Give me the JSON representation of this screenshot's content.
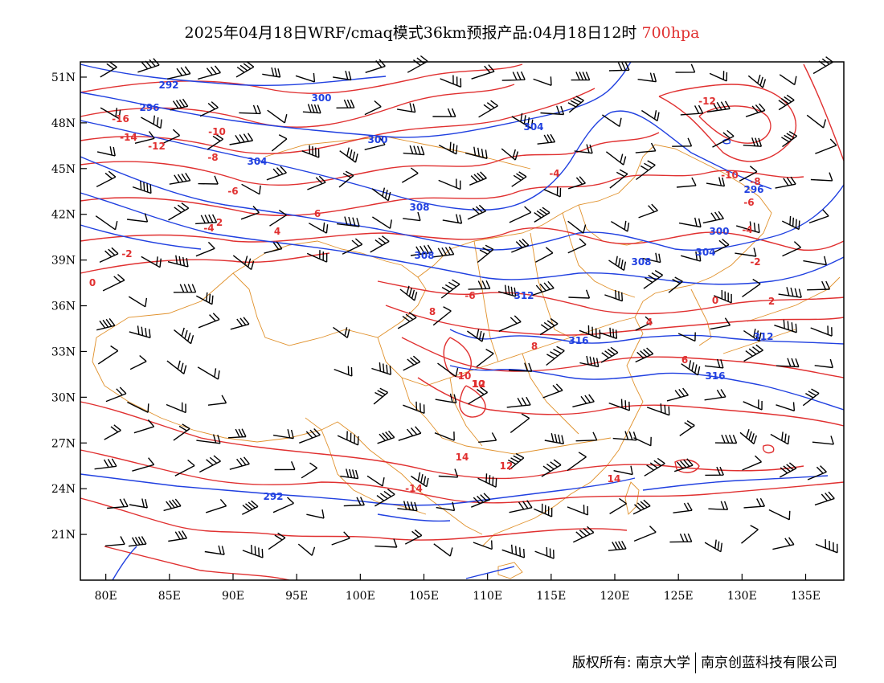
{
  "title": {
    "main": "2025年04月18日WRF/cmaq模式36km预报产品:04月18日12时",
    "level": "700hpa"
  },
  "footer": {
    "left": "版权所有: 南京大学",
    "right": "南京创蓝科技有限公司"
  },
  "map": {
    "lon_range": [
      78,
      138
    ],
    "lat_range": [
      18,
      52
    ],
    "xticks": [
      "80E",
      "85E",
      "90E",
      "95E",
      "100E",
      "105E",
      "110E",
      "115E",
      "120E",
      "125E",
      "130E",
      "135E"
    ],
    "yticks": [
      "51N",
      "48N",
      "45N",
      "42N",
      "39N",
      "36N",
      "33N",
      "30N",
      "27N",
      "24N",
      "21N"
    ],
    "colors": {
      "temperature": "#e03030",
      "geopotential": "#2040e0",
      "boundary": "#e0902a",
      "wind": "#000000"
    },
    "temperature_labels": [
      "-16",
      "-14",
      "-12",
      "-10",
      "-8",
      "-6",
      "-4",
      "-2",
      "0",
      "2",
      "4",
      "6",
      "8",
      "10",
      "12",
      "14",
      "-14",
      "-12",
      "-10",
      "-8",
      "-6",
      "-4",
      "-2",
      "0",
      "2",
      "4",
      "6",
      "8",
      "10",
      "12",
      "14",
      "-4",
      "-6"
    ],
    "height_labels": [
      "292",
      "296",
      "300",
      "300",
      "304",
      "304",
      "308",
      "308",
      "312",
      "316",
      "292",
      "296",
      "300",
      "304",
      "308",
      "312",
      "316"
    ]
  }
}
